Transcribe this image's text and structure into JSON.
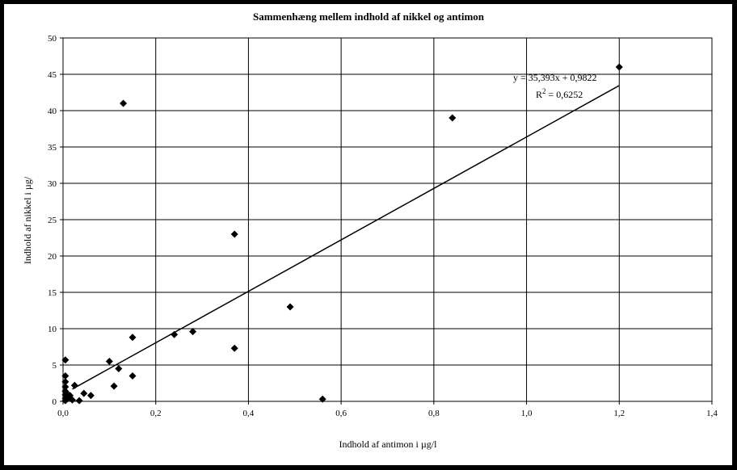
{
  "chart_data": {
    "type": "scatter",
    "title": "Sammenhæng mellem indhold af nikkel og antimon",
    "xlabel": "Indhold af antimon i µg/l",
    "ylabel": "Indhold af nikkel i µg/",
    "xlim": [
      0,
      1.4
    ],
    "ylim": [
      0,
      50
    ],
    "x_ticks": [
      0,
      0.2,
      0.4,
      0.6,
      0.8,
      1.0,
      1.2,
      1.4
    ],
    "x_tick_labels": [
      "0,0",
      "0,2",
      "0,4",
      "0,6",
      "0,8",
      "1,0",
      "1,2",
      "1,4"
    ],
    "y_ticks": [
      0,
      5,
      10,
      15,
      20,
      25,
      30,
      35,
      40,
      45,
      50
    ],
    "y_tick_labels": [
      "0",
      "5",
      "10",
      "15",
      "20",
      "25",
      "30",
      "35",
      "40",
      "45",
      "50"
    ],
    "grid": true,
    "legend": "none",
    "marker": "diamond",
    "marker_color": "#000000",
    "points": [
      {
        "x": 0.13,
        "y": 41
      },
      {
        "x": 1.2,
        "y": 46
      },
      {
        "x": 0.84,
        "y": 39
      },
      {
        "x": 0.37,
        "y": 23
      },
      {
        "x": 0.49,
        "y": 13
      },
      {
        "x": 0.56,
        "y": 0.3
      },
      {
        "x": 0.28,
        "y": 9.6
      },
      {
        "x": 0.24,
        "y": 9.2
      },
      {
        "x": 0.37,
        "y": 7.3
      },
      {
        "x": 0.15,
        "y": 8.8
      },
      {
        "x": 0.15,
        "y": 3.5
      },
      {
        "x": 0.12,
        "y": 4.5
      },
      {
        "x": 0.1,
        "y": 5.5
      },
      {
        "x": 0.11,
        "y": 2.1
      },
      {
        "x": 0.005,
        "y": 5.7
      },
      {
        "x": 0.005,
        "y": 3.5
      },
      {
        "x": 0.005,
        "y": 2.7
      },
      {
        "x": 0.005,
        "y": 2.0
      },
      {
        "x": 0.005,
        "y": 1.4
      },
      {
        "x": 0.005,
        "y": 0.9
      },
      {
        "x": 0.005,
        "y": 0.4
      },
      {
        "x": 0.005,
        "y": 0.1
      },
      {
        "x": 0.01,
        "y": 1.0
      },
      {
        "x": 0.01,
        "y": 0.4
      },
      {
        "x": 0.015,
        "y": 0.8
      },
      {
        "x": 0.02,
        "y": 0.2
      },
      {
        "x": 0.025,
        "y": 2.2
      },
      {
        "x": 0.035,
        "y": 0.1
      },
      {
        "x": 0.045,
        "y": 1.1
      },
      {
        "x": 0.06,
        "y": 0.8
      }
    ],
    "trendline": {
      "type": "linear",
      "slope": 35.393,
      "intercept": 0.9822,
      "x_range": [
        0.02,
        1.2
      ],
      "equation_label": "y = 35,393x + 0,9822",
      "r2_prefix": "R",
      "r2_sup": "2",
      "r2_suffix": " = 0,6252"
    }
  }
}
